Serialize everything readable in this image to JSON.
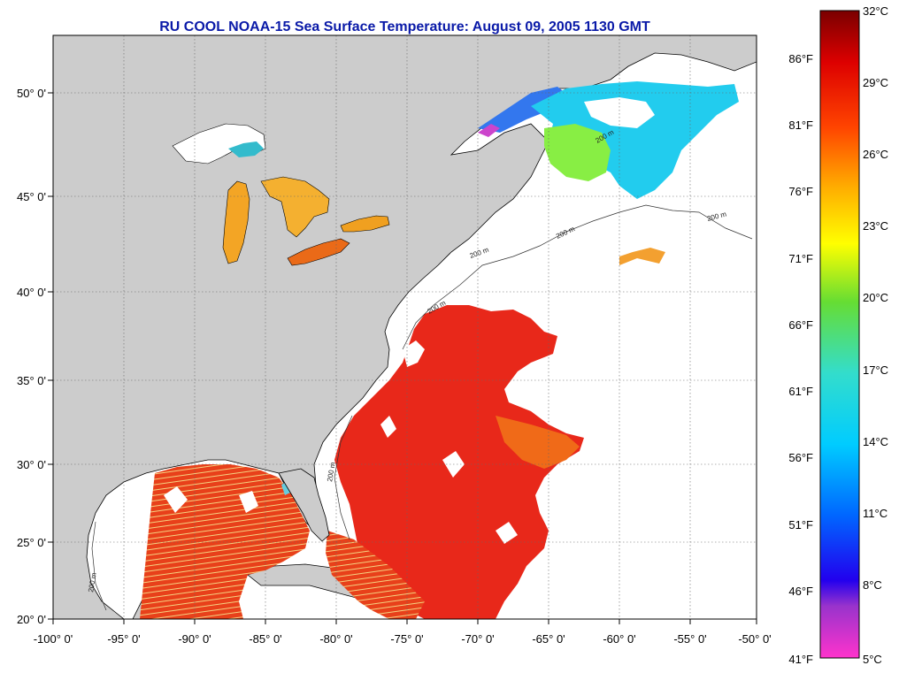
{
  "title": "RU COOL  NOAA-15  Sea Surface Temperature:  August 09, 2005 1130 GMT",
  "map": {
    "lon_labels": [
      "-100° 0'",
      "-95° 0'",
      "-90° 0'",
      "-85° 0'",
      "-80° 0'",
      "-75° 0'",
      "-70° 0'",
      "-65° 0'",
      "-60° 0'",
      "-55° 0'",
      "-50° 0'"
    ],
    "lat_labels": [
      "50° 0'",
      "45° 0'",
      "40° 0'",
      "35° 0'",
      "30° 0'",
      "25° 0'",
      "20° 0'"
    ],
    "isobath_labels": [
      "200 m",
      "200 m",
      "200 m",
      "200 m",
      "200 m",
      "200 m",
      "200 m"
    ],
    "land_color": "#cccccc",
    "ocean_nodata_color": "#ffffff"
  },
  "colorbar": {
    "celsius_labels": [
      "32°C",
      "29°C",
      "26°C",
      "23°C",
      "20°C",
      "17°C",
      "14°C",
      "11°C",
      "8°C",
      "5°C"
    ],
    "fahrenheit_labels": [
      "86°F",
      "81°F",
      "76°F",
      "71°F",
      "66°F",
      "61°F",
      "56°F",
      "51°F",
      "46°F",
      "41°F"
    ]
  }
}
